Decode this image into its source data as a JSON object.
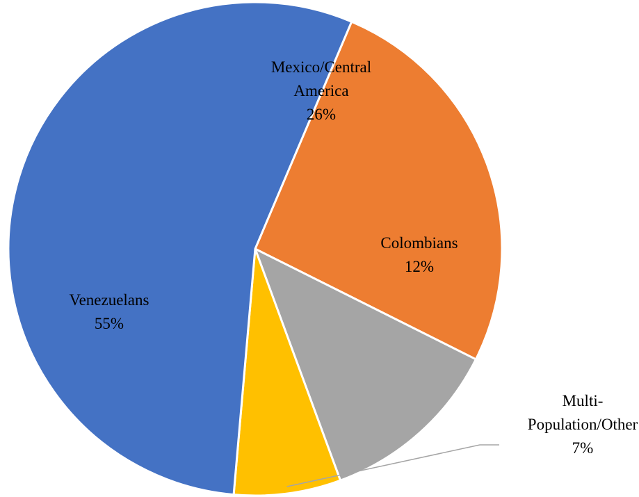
{
  "chart_data": {
    "type": "pie",
    "slices": [
      {
        "name": "Mexico/Central America",
        "label_lines": [
          "Mexico/Central",
          "America"
        ],
        "percent_label": "26%",
        "value": 26,
        "color": "#ED7D31"
      },
      {
        "name": "Colombians",
        "label_lines": [
          "Colombians"
        ],
        "percent_label": "12%",
        "value": 12,
        "color": "#A5A5A5"
      },
      {
        "name": "Multi-Population/Other",
        "label_lines": [
          "Multi-",
          "Population/Other"
        ],
        "percent_label": "7%",
        "value": 7,
        "color": "#FFC000"
      },
      {
        "name": "Venezuelans",
        "label_lines": [
          "Venezuelans"
        ],
        "percent_label": "55%",
        "value": 55,
        "color": "#4472C4"
      }
    ],
    "start_angle_deg": 23,
    "direction": "clockwise",
    "slice_border_color": "#ffffff",
    "leader_line_color": "#A5A5A5"
  }
}
